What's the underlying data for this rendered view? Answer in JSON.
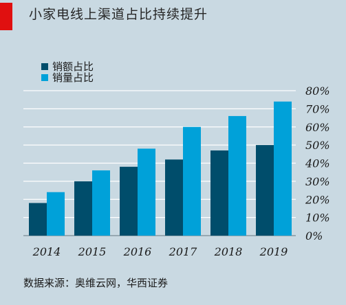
{
  "page": {
    "title": "小家电线上渠道占比持续提升",
    "source": "数据来源：奥维云网，华西证券",
    "accent_color": "#e01010"
  },
  "chart_data": {
    "type": "bar",
    "categories": [
      "2014",
      "2015",
      "2016",
      "2017",
      "2018",
      "2019"
    ],
    "series": [
      {
        "name": "销额占比",
        "color": "#004d6b",
        "values": [
          18,
          30,
          38,
          42,
          47,
          50
        ]
      },
      {
        "name": "销量占比",
        "color": "#00a1d9",
        "values": [
          24,
          36,
          48,
          60,
          66,
          74
        ]
      }
    ],
    "yticks": [
      "0%",
      "10%",
      "20%",
      "30%",
      "40%",
      "50%",
      "60%",
      "70%",
      "80%"
    ],
    "ylim": [
      0,
      80
    ],
    "grid": true,
    "legend_position": "top-left"
  }
}
